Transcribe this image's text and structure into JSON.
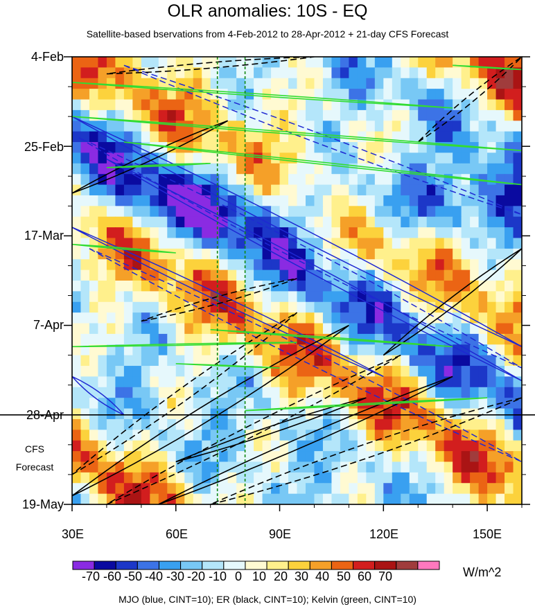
{
  "chart_data": {
    "type": "heatmap",
    "title": "OLR anomalies: 10S - EQ",
    "subtitle": "Satellite-based bservations from 4-Feb-2012 to 28-Apr-2012 + 21-day CFS Forecast",
    "x_ticks": [
      {
        "label": "30E",
        "lon": 30
      },
      {
        "label": "60E",
        "lon": 60
      },
      {
        "label": "90E",
        "lon": 90
      },
      {
        "label": "120E",
        "lon": 120
      },
      {
        "label": "150E",
        "lon": 150
      }
    ],
    "xlim": [
      30,
      160
    ],
    "y_ticks": [
      {
        "label": "4-Feb",
        "day": 0
      },
      {
        "label": "25-Feb",
        "day": 21
      },
      {
        "label": "17-Mar",
        "day": 42
      },
      {
        "label": "7-Apr",
        "day": 63
      },
      {
        "label": "28-Apr",
        "day": 84
      },
      {
        "label": "19-May",
        "day": 105
      }
    ],
    "ylim_days": [
      0,
      105
    ],
    "forecast_start_day": 84,
    "forecast_label_1": "CFS",
    "forecast_label_2": "Forecast",
    "reference_lons": [
      72,
      80
    ],
    "colorbar": {
      "levels": [
        "-70",
        "-60",
        "-50",
        "-40",
        "-30",
        "-20",
        "-10",
        "0",
        "10",
        "20",
        "30",
        "40",
        "50",
        "60",
        "70"
      ],
      "colors": [
        "#8a2be2",
        "#0a0aa0",
        "#1c37c8",
        "#3c73e6",
        "#39a0f0",
        "#78c8f5",
        "#b4e6fa",
        "#e6f8fc",
        "#fffad2",
        "#fff08c",
        "#fcd23c",
        "#f5a028",
        "#eb6414",
        "#d21e1e",
        "#aa1414",
        "#a03c3c",
        "#ff78be"
      ],
      "units": "W/m^2"
    },
    "legend": "MJO (blue, CINT=10); ER (black, CINT=10); Kelvin (green, CINT=10)",
    "series_colors": {
      "MJO": "#1e28d2",
      "ER": "#000000",
      "Kelvin": "#32dc32"
    }
  }
}
